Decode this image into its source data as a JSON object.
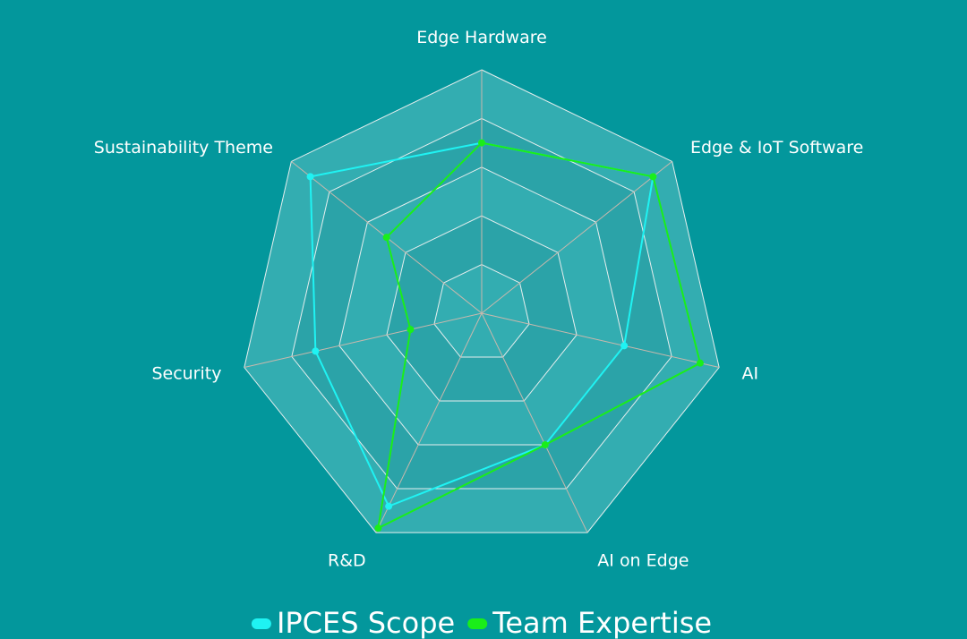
{
  "chart_data": {
    "type": "radar",
    "axes": [
      "Edge Hardware",
      "Edge & IoT Software",
      "AI",
      "AI on Edge",
      "R&D",
      "Security",
      "Sustainability Theme"
    ],
    "scale": {
      "min": 0,
      "max": 5,
      "rings": 5
    },
    "grid": true,
    "legend_position": "bottom",
    "series": [
      {
        "name": "IPCES Scope",
        "color": "#1ff3f3",
        "values": [
          3.5,
          4.5,
          3,
          3,
          4.4,
          3.5,
          4.5
        ]
      },
      {
        "name": "Team Expertise",
        "color": "#1aee1a",
        "values": [
          3.5,
          4.5,
          4.6,
          3,
          4.9,
          1.5,
          2.5
        ]
      }
    ]
  },
  "colors": {
    "background": "#03979c",
    "plot_fill": "#33adb1",
    "ring_fill_alt": "#2ba3a8",
    "spoke": "#c9b8ad",
    "ring_line": "#e6eeee"
  }
}
